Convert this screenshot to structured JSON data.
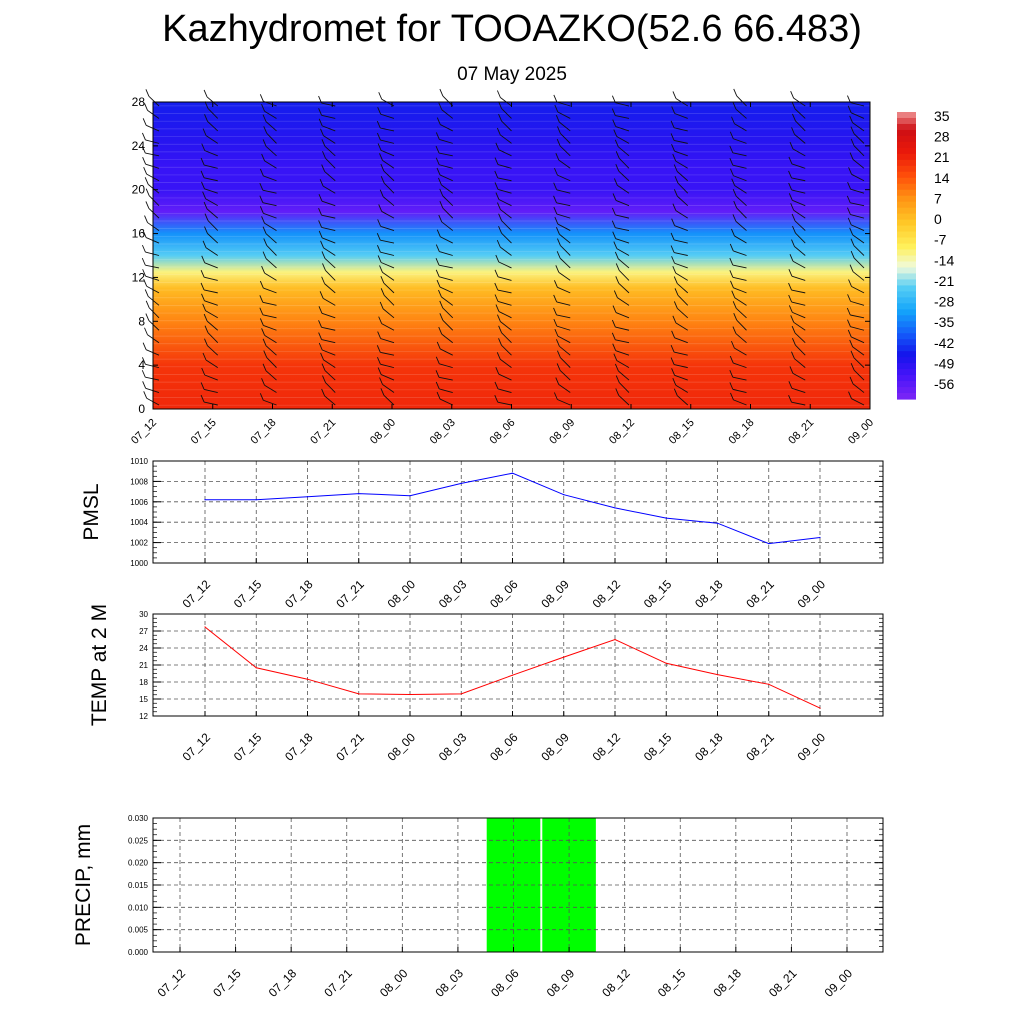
{
  "title": "Kazhydromet for TOOAZKO(52.6 66.483)",
  "subtitle": "07 May 2025",
  "time_labels": [
    "07_12",
    "07_15",
    "07_18",
    "07_21",
    "08_00",
    "08_03",
    "08_06",
    "08_09",
    "08_12",
    "08_15",
    "08_18",
    "08_21",
    "09_00"
  ],
  "colorbar": {
    "labels": [
      "35",
      "28",
      "21",
      "14",
      "7",
      "0",
      "-7",
      "-14",
      "-21",
      "-28",
      "-35",
      "-42",
      "-49",
      "-56"
    ]
  },
  "chart_data": [
    {
      "type": "heatmap",
      "title": "",
      "ylabel": "",
      "ylim": [
        0,
        28
      ],
      "yticks": [
        0,
        4,
        8,
        12,
        16,
        20,
        24,
        28
      ],
      "x": [
        "07_12",
        "07_15",
        "07_18",
        "07_21",
        "08_00",
        "08_03",
        "08_06",
        "08_09",
        "08_12",
        "08_15",
        "08_18",
        "08_21",
        "09_00"
      ],
      "color_range": [
        -60,
        38
      ],
      "profile": [
        {
          "level": 0,
          "value": 22
        },
        {
          "level": 4,
          "value": 20
        },
        {
          "level": 8,
          "value": 10
        },
        {
          "level": 11,
          "value": 2
        },
        {
          "level": 12.5,
          "value": -10
        },
        {
          "level": 14,
          "value": -22
        },
        {
          "level": 16,
          "value": -32
        },
        {
          "level": 18,
          "value": -56
        },
        {
          "level": 20,
          "value": -50
        },
        {
          "level": 22,
          "value": -50
        },
        {
          "level": 24,
          "value": -48
        },
        {
          "level": 28,
          "value": -44
        }
      ]
    },
    {
      "type": "line",
      "ylabel": "PMSL",
      "ylim": [
        1000,
        1010
      ],
      "yticks": [
        1000,
        1002,
        1004,
        1006,
        1008,
        1010
      ],
      "x": [
        "07_12",
        "07_15",
        "07_18",
        "07_21",
        "08_00",
        "08_03",
        "08_06",
        "08_09",
        "08_12",
        "08_15",
        "08_18",
        "08_21",
        "09_00"
      ],
      "series": [
        {
          "values": [
            1006.2,
            1006.2,
            1006.5,
            1006.8,
            1006.6,
            1007.8,
            1008.8,
            1006.7,
            1005.4,
            1004.4,
            1003.9,
            1001.9,
            1002.5
          ]
        }
      ],
      "color": "#0000ff"
    },
    {
      "type": "line",
      "ylabel": "TEMP at 2 M",
      "ylim": [
        12,
        30
      ],
      "yticks": [
        12,
        15,
        18,
        21,
        24,
        27,
        30
      ],
      "x": [
        "07_12",
        "07_15",
        "07_18",
        "07_21",
        "08_00",
        "08_03",
        "08_06",
        "08_09",
        "08_12",
        "08_15",
        "08_18",
        "08_21",
        "09_00"
      ],
      "series": [
        {
          "values": [
            27.7,
            20.5,
            18.5,
            15.9,
            15.8,
            15.9,
            19.2,
            22.4,
            25.5,
            21.3,
            19.3,
            17.6,
            13.4
          ]
        }
      ],
      "color": "#ff0000"
    },
    {
      "type": "bar",
      "ylabel": "PRECIP, mm",
      "ylim": [
        0,
        0.03
      ],
      "yticks": [
        "0.000",
        "0.005",
        "0.010",
        "0.015",
        "0.020",
        "0.025",
        "0.030"
      ],
      "x": [
        "07_12",
        "07_15",
        "07_18",
        "07_21",
        "08_00",
        "08_03",
        "08_06",
        "08_09",
        "08_12",
        "08_15",
        "08_18",
        "08_21",
        "09_00"
      ],
      "values": [
        0,
        0,
        0,
        0,
        0,
        0,
        0.03,
        0.03,
        0,
        0,
        0,
        0,
        0
      ],
      "color": "#00ff00"
    }
  ]
}
